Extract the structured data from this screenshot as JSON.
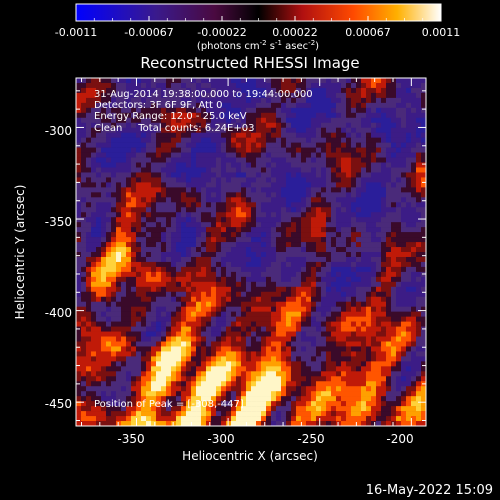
{
  "colorbar": {
    "ticks": [
      "-0.0011",
      "-0.00067",
      "-0.00022",
      "0.00022",
      "0.00067",
      "0.0011"
    ],
    "unit_main": "(photons cm",
    "unit_exp1": "-2",
    "unit_s": " s",
    "unit_exp2": "-1",
    "unit_asec": " asec",
    "unit_exp3": "-2",
    "unit_close": ")"
  },
  "image": {
    "title": "Reconstructed RHESSI Image",
    "annotations": [
      "31-Aug-2014 19:38:00.000 to 19:44:00.000",
      "Detectors: 3F 6F 9F, Att 0",
      "Energy Range: 12.0 - 25.0 keV",
      "Clean     Total counts: 6.24E+03"
    ],
    "peak_label": "Position of Peak = [-308,-447]",
    "xlabel": "Heliocentric X (arcsec)",
    "ylabel": "Heliocentric Y (arcsec)",
    "xticks": [
      "-350",
      "-300",
      "-250",
      "-200"
    ],
    "yticks": [
      "-300",
      "-350",
      "-400",
      "-450"
    ],
    "xlim": [
      -383,
      -192
    ],
    "ylim": [
      -463,
      -273
    ]
  },
  "footer": {
    "timestamp": "16-May-2022 15:09"
  },
  "colors": {
    "background": "#000000",
    "axes": "#ffffff"
  }
}
